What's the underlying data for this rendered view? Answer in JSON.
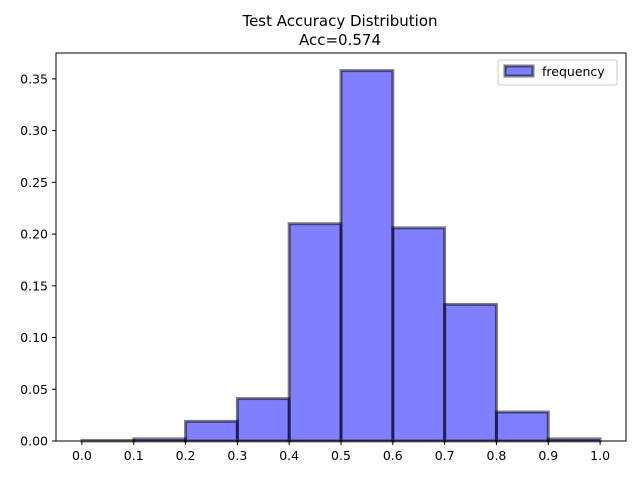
{
  "chart_data": {
    "type": "bar",
    "title": "Test Accuracy Distribution",
    "subtitle": "Acc=0.574",
    "xlabel": "",
    "ylabel": "",
    "bins": [
      {
        "start": 0.0,
        "end": 0.1,
        "value": 0.0005
      },
      {
        "start": 0.1,
        "end": 0.2,
        "value": 0.002
      },
      {
        "start": 0.2,
        "end": 0.3,
        "value": 0.019
      },
      {
        "start": 0.3,
        "end": 0.4,
        "value": 0.041
      },
      {
        "start": 0.4,
        "end": 0.5,
        "value": 0.21
      },
      {
        "start": 0.5,
        "end": 0.6,
        "value": 0.358
      },
      {
        "start": 0.6,
        "end": 0.7,
        "value": 0.206
      },
      {
        "start": 0.7,
        "end": 0.8,
        "value": 0.132
      },
      {
        "start": 0.8,
        "end": 0.9,
        "value": 0.028
      },
      {
        "start": 0.9,
        "end": 1.0,
        "value": 0.002
      }
    ],
    "xlim": [
      -0.05,
      1.05
    ],
    "ylim": [
      0,
      0.375
    ],
    "xticks": [
      "0.0",
      "0.1",
      "0.2",
      "0.3",
      "0.4",
      "0.5",
      "0.6",
      "0.7",
      "0.8",
      "0.9",
      "1.0"
    ],
    "yticks": [
      "0.00",
      "0.05",
      "0.10",
      "0.15",
      "0.20",
      "0.25",
      "0.30",
      "0.35"
    ],
    "legend": {
      "label": "frequency",
      "position": "top-right"
    },
    "colors": {
      "fill": "#0000ff",
      "fill_opacity": 0.5,
      "edge": "#000000",
      "edge_opacity": 0.5
    },
    "grid": false
  }
}
